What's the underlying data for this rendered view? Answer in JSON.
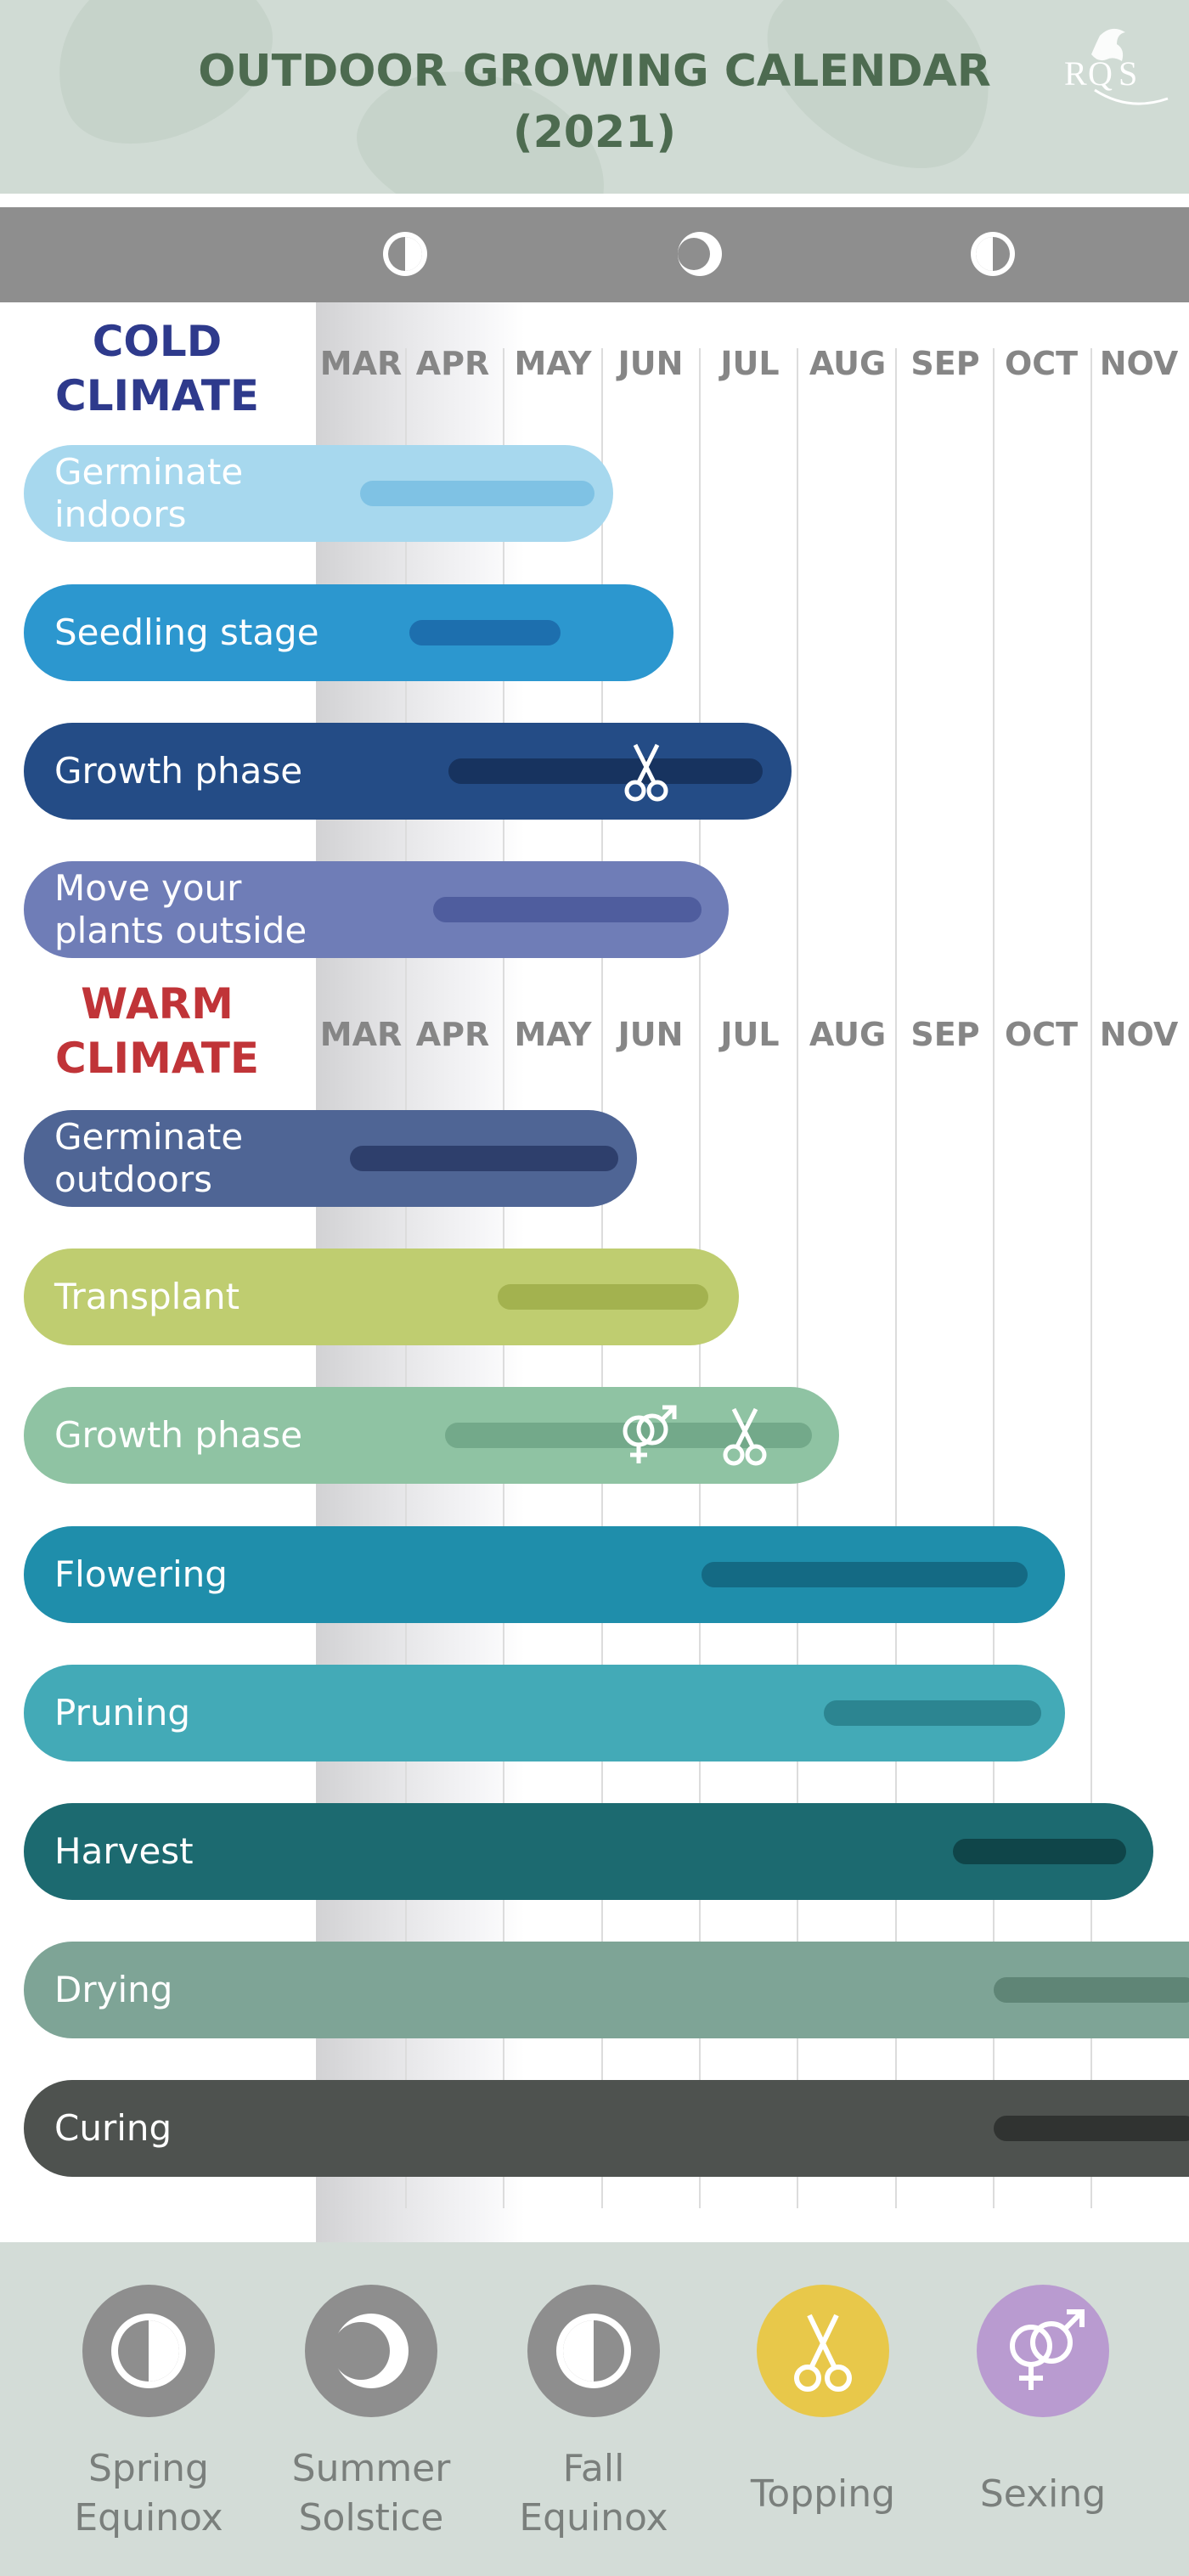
{
  "header": {
    "title_line1": "OUTDOOR GROWING CALENDAR",
    "title_line2": "(2021)"
  },
  "months": [
    "MAR",
    "APR",
    "MAY",
    "JUN",
    "JUL",
    "AUG",
    "SEP",
    "OCT",
    "NOV"
  ],
  "cold": {
    "title_line1": "COLD",
    "title_line2": "CLIMATE",
    "color": "#2e3a8c",
    "rows": [
      {
        "label": "Germinate\n indoors",
        "color": "#a7d8ee",
        "inner": "#7fc2e4"
      },
      {
        "label": "Seedling stage",
        "color": "#2c97cf",
        "inner": "#1d6fae"
      },
      {
        "label": "Growth phase",
        "color": "#244c86",
        "inner": "#17335f"
      },
      {
        "label": "Move your\nplants outside",
        "color": "#6f7db7",
        "inner": "#4f5d9e"
      }
    ]
  },
  "warm": {
    "title_line1": "WARM",
    "title_line2": "CLIMATE",
    "color": "#c03438",
    "rows": [
      {
        "label": "Germinate\noutdoors",
        "color": "#4f6595",
        "inner": "#2e3f6c"
      },
      {
        "label": "Transplant",
        "color": "#bfcd70",
        "inner": "#a3b24f"
      },
      {
        "label": "Growth phase",
        "color": "#8fc3a3",
        "inner": "#73a98a"
      },
      {
        "label": "Flowering",
        "color": "#1f8eab",
        "inner": "#146a84"
      },
      {
        "label": "Pruning",
        "color": "#43aab7",
        "inner": "#2c8591"
      },
      {
        "label": "Harvest",
        "color": "#1c6a70",
        "inner": "#0f4549"
      },
      {
        "label": "Drying",
        "color": "#7ea496",
        "inner": "#5f8576"
      },
      {
        "label": "Curing",
        "color": "#4e524f",
        "inner": "#303331"
      }
    ]
  },
  "legend": [
    {
      "label": "Spring\nEquinox",
      "icon": "first-quarter-moon-icon",
      "color": "#8e8e8e"
    },
    {
      "label": "Summer\nSolstice",
      "icon": "crescent-moon-icon",
      "color": "#8e8e8e"
    },
    {
      "label": "Fall\nEquinox",
      "icon": "half-moon-icon",
      "color": "#8e8e8e"
    },
    {
      "label": "Topping",
      "icon": "scissors-icon",
      "color": "#e8c84a"
    },
    {
      "label": "Sexing",
      "icon": "gender-symbol-icon",
      "color": "#b99bd0"
    }
  ],
  "colors": {
    "header_bg": "#d0dbd4",
    "title_text": "#4d6b50",
    "top_bar": "#8e8e8e",
    "footer_bg": "#d3dcd7"
  }
}
